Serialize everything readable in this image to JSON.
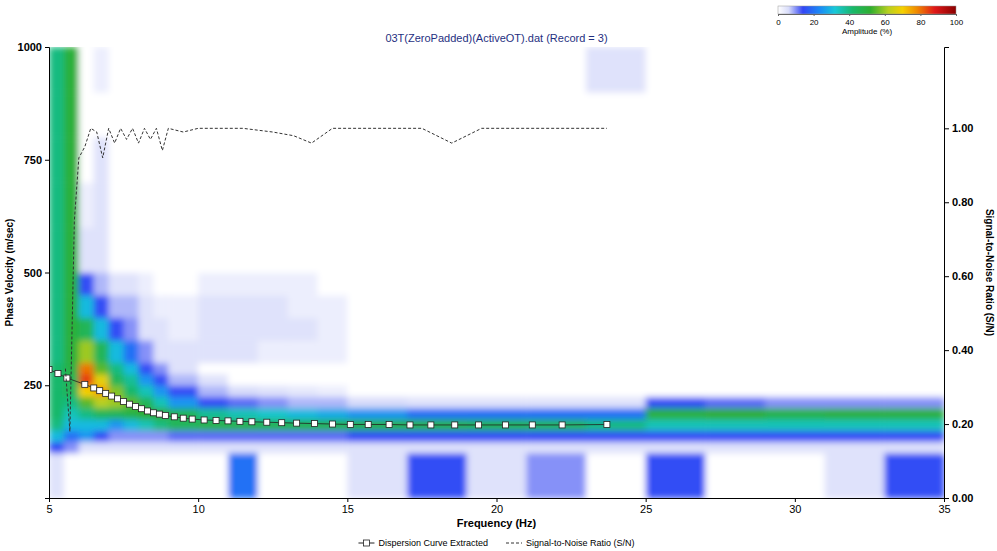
{
  "chart_data": {
    "type": "heatmap",
    "title": "03T(ZeroPadded)(ActiveOT).dat (Record = 3)",
    "x_label": "Frequency (Hz)",
    "y_label": "Phase Velocity (m/sec)",
    "y2_label": "Signal-to-Noise Ratio (S/N)",
    "xlim": [
      5,
      35
    ],
    "xticks": [
      5,
      10,
      15,
      20,
      25,
      30,
      35
    ],
    "ylim": [
      0,
      1000
    ],
    "yticks": [
      250,
      500,
      750,
      1000
    ],
    "y2lim": [
      0,
      1.22
    ],
    "y2ticks": [
      {
        "value": 0,
        "label": "0.00"
      },
      {
        "value": 0.2,
        "label": "0.20"
      },
      {
        "value": 0.4,
        "label": "0.40"
      },
      {
        "value": 0.6,
        "label": "0.60"
      },
      {
        "value": 0.8,
        "label": "0.80"
      },
      {
        "value": 1,
        "label": "1.00"
      }
    ],
    "legend": "bottom",
    "heatmap": {
      "x_edges": [
        5,
        5.5,
        6,
        6.5,
        7,
        7.5,
        8,
        8.5,
        9,
        10,
        11,
        12,
        13,
        14,
        15,
        17,
        19,
        21,
        23,
        25,
        27,
        29,
        31,
        33,
        35
      ],
      "y_edges": [
        0,
        100,
        125,
        150,
        175,
        200,
        225,
        250,
        275,
        300,
        350,
        400,
        450,
        500,
        600,
        700,
        800,
        900,
        1000
      ],
      "values": [
        [
          5,
          0,
          0,
          0,
          0,
          0,
          0,
          0,
          0,
          0,
          20,
          0,
          0,
          0,
          5,
          15,
          5,
          10,
          0,
          15,
          0,
          0,
          5,
          15
        ],
        [
          15,
          10,
          5,
          5,
          5,
          5,
          5,
          5,
          5,
          5,
          5,
          5,
          5,
          5,
          5,
          5,
          5,
          5,
          5,
          5,
          5,
          5,
          5,
          5
        ],
        [
          30,
          20,
          25,
          15,
          10,
          10,
          10,
          10,
          12,
          12,
          12,
          12,
          12,
          12,
          15,
          15,
          15,
          15,
          15,
          15,
          15,
          15,
          15,
          15
        ],
        [
          40,
          30,
          30,
          30,
          25,
          30,
          35,
          40,
          45,
          48,
          48,
          47,
          47,
          47,
          48,
          48,
          47,
          45,
          40,
          35,
          35,
          35,
          35,
          35
        ],
        [
          42,
          35,
          40,
          45,
          45,
          48,
          52,
          52,
          45,
          38,
          35,
          33,
          30,
          28,
          25,
          20,
          20,
          20,
          20,
          50,
          52,
          48,
          50,
          50
        ],
        [
          42,
          40,
          55,
          62,
          60,
          55,
          45,
          35,
          25,
          15,
          12,
          10,
          8,
          8,
          6,
          5,
          5,
          5,
          5,
          15,
          12,
          10,
          10,
          10
        ],
        [
          42,
          45,
          70,
          75,
          58,
          42,
          35,
          25,
          15,
          8,
          6,
          5,
          4,
          3,
          0,
          0,
          0,
          0,
          0,
          0,
          0,
          0,
          0,
          0
        ],
        [
          42,
          45,
          85,
          68,
          45,
          38,
          25,
          15,
          8,
          5,
          0,
          0,
          0,
          0,
          0,
          0,
          0,
          0,
          0,
          0,
          0,
          0,
          0,
          0
        ],
        [
          42,
          48,
          80,
          55,
          40,
          30,
          15,
          10,
          5,
          0,
          0,
          0,
          0,
          0,
          0,
          0,
          0,
          0,
          0,
          0,
          0,
          0,
          0,
          0
        ],
        [
          40,
          50,
          60,
          45,
          30,
          20,
          10,
          5,
          5,
          5,
          5,
          3,
          3,
          3,
          0,
          0,
          0,
          0,
          0,
          0,
          0,
          0,
          0,
          0
        ],
        [
          40,
          50,
          45,
          30,
          15,
          10,
          5,
          5,
          3,
          5,
          5,
          5,
          5,
          3,
          0,
          0,
          0,
          0,
          0,
          0,
          0,
          0,
          0,
          0
        ],
        [
          40,
          50,
          30,
          15,
          8,
          8,
          5,
          3,
          3,
          5,
          5,
          5,
          3,
          3,
          0,
          0,
          0,
          0,
          0,
          0,
          0,
          0,
          0,
          0
        ],
        [
          40,
          50,
          15,
          8,
          5,
          5,
          3,
          0,
          0,
          3,
          3,
          3,
          3,
          0,
          0,
          0,
          0,
          0,
          0,
          0,
          0,
          0,
          0,
          0
        ],
        [
          40,
          50,
          5,
          5,
          0,
          0,
          0,
          0,
          0,
          0,
          0,
          0,
          0,
          0,
          0,
          0,
          0,
          0,
          0,
          0,
          0,
          0,
          0,
          0
        ],
        [
          40,
          50,
          3,
          5,
          0,
          0,
          0,
          0,
          0,
          0,
          0,
          0,
          0,
          0,
          0,
          0,
          0,
          0,
          0,
          0,
          0,
          0,
          0,
          0
        ],
        [
          40,
          50,
          0,
          5,
          0,
          0,
          0,
          0,
          0,
          0,
          0,
          0,
          0,
          0,
          0,
          0,
          0,
          0,
          0,
          0,
          0,
          0,
          0,
          0
        ],
        [
          40,
          50,
          0,
          0,
          0,
          0,
          0,
          0,
          0,
          0,
          0,
          0,
          0,
          0,
          0,
          0,
          0,
          0,
          0,
          0,
          0,
          0,
          0,
          0
        ],
        [
          40,
          50,
          0,
          3,
          0,
          0,
          0,
          0,
          0,
          0,
          0,
          0,
          0,
          0,
          0,
          0,
          0,
          0,
          5,
          0,
          0,
          0,
          0,
          0
        ]
      ],
      "colorbar": {
        "label": "Amplitude (%)",
        "range": [
          0,
          100
        ],
        "ticks": [
          0,
          20,
          40,
          60,
          80,
          100
        ]
      }
    },
    "series": [
      {
        "name": "Dispersion Curve Extracted",
        "type": "scatter",
        "marker": "square",
        "color": "#222222",
        "x": [
          5,
          5.3,
          5.6,
          6.2,
          6.5,
          6.7,
          6.9,
          7.1,
          7.3,
          7.5,
          7.7,
          7.9,
          8.1,
          8.3,
          8.5,
          8.7,
          8.9,
          9.2,
          9.5,
          9.8,
          10.2,
          10.6,
          11,
          11.4,
          11.8,
          12.3,
          12.8,
          13.3,
          13.9,
          14.5,
          15.1,
          15.7,
          16.4,
          17.1,
          17.8,
          18.6,
          19.4,
          20.3,
          21.2,
          22.2,
          23.7
        ],
        "values": [
          285,
          276,
          266,
          252,
          244,
          238,
          232,
          226,
          220,
          214,
          208,
          203,
          198,
          193,
          189,
          186,
          183,
          180,
          177,
          175,
          173,
          172,
          171,
          170,
          169,
          168,
          167,
          166,
          165,
          164,
          163,
          163,
          163,
          162,
          162,
          162,
          162,
          162,
          162,
          162,
          163
        ]
      },
      {
        "name": "Signal-to-Noise Ratio (S/N)",
        "type": "line",
        "axis": "y2",
        "line_style": "dashed",
        "color": "#333333",
        "x": [
          5.55,
          5.7,
          5.85,
          6,
          6.2,
          6.4,
          6.6,
          6.8,
          7,
          7.2,
          7.4,
          7.6,
          7.8,
          8,
          8.2,
          8.4,
          8.6,
          8.8,
          9,
          9.5,
          10,
          11.5,
          12.5,
          13.2,
          13.8,
          14.5,
          17.5,
          18.5,
          19.5,
          23.7
        ],
        "values": [
          0.35,
          0.18,
          0.75,
          0.92,
          0.95,
          1,
          0.99,
          0.92,
          1,
          0.96,
          1,
          0.97,
          1,
          0.96,
          1,
          0.97,
          1,
          0.94,
          1,
          0.99,
          1,
          1,
          0.99,
          0.98,
          0.96,
          1,
          1,
          0.96,
          1,
          1
        ]
      }
    ]
  }
}
